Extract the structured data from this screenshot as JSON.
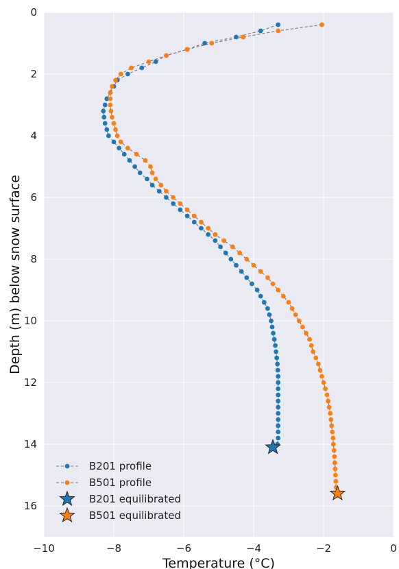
{
  "chart_data": {
    "type": "line",
    "title": "",
    "xlabel": "Temperature (°C)",
    "ylabel": "Depth (m) below snow surface",
    "xlim": [
      -10,
      0
    ],
    "ylim": [
      17,
      0
    ],
    "y_inverted": true,
    "xticks": [
      -10,
      -8,
      -6,
      -4,
      -2,
      0
    ],
    "xtick_labels": [
      "−10",
      "−8",
      "−6",
      "−4",
      "−2",
      "0"
    ],
    "yticks": [
      0,
      2,
      4,
      6,
      8,
      10,
      12,
      14,
      16
    ],
    "ytick_labels": [
      "0",
      "2",
      "4",
      "6",
      "8",
      "10",
      "12",
      "14",
      "16"
    ],
    "grid": true,
    "legend_position": "lower-left",
    "series": [
      {
        "name": "B201 profile",
        "color": "#1f77b4",
        "marker": "circle",
        "line": "dashed-gray",
        "points": [
          {
            "x": -3.3,
            "y": 0.4
          },
          {
            "x": -3.8,
            "y": 0.6
          },
          {
            "x": -4.5,
            "y": 0.8
          },
          {
            "x": -5.4,
            "y": 1.0
          },
          {
            "x": -5.9,
            "y": 1.2
          },
          {
            "x": -6.5,
            "y": 1.4
          },
          {
            "x": -6.8,
            "y": 1.6
          },
          {
            "x": -7.2,
            "y": 1.8
          },
          {
            "x": -7.6,
            "y": 2.0
          },
          {
            "x": -7.9,
            "y": 2.2
          },
          {
            "x": -8.0,
            "y": 2.4
          },
          {
            "x": -8.1,
            "y": 2.6
          },
          {
            "x": -8.2,
            "y": 2.8
          },
          {
            "x": -8.25,
            "y": 3.0
          },
          {
            "x": -8.3,
            "y": 3.2
          },
          {
            "x": -8.28,
            "y": 3.4
          },
          {
            "x": -8.25,
            "y": 3.6
          },
          {
            "x": -8.2,
            "y": 3.8
          },
          {
            "x": -8.15,
            "y": 4.0
          },
          {
            "x": -8.0,
            "y": 4.2
          },
          {
            "x": -7.85,
            "y": 4.4
          },
          {
            "x": -7.7,
            "y": 4.6
          },
          {
            "x": -7.55,
            "y": 4.8
          },
          {
            "x": -7.4,
            "y": 5.0
          },
          {
            "x": -7.25,
            "y": 5.2
          },
          {
            "x": -7.05,
            "y": 5.4
          },
          {
            "x": -6.9,
            "y": 5.6
          },
          {
            "x": -6.7,
            "y": 5.8
          },
          {
            "x": -6.5,
            "y": 6.0
          },
          {
            "x": -6.3,
            "y": 6.2
          },
          {
            "x": -6.1,
            "y": 6.4
          },
          {
            "x": -5.9,
            "y": 6.6
          },
          {
            "x": -5.7,
            "y": 6.8
          },
          {
            "x": -5.5,
            "y": 7.0
          },
          {
            "x": -5.3,
            "y": 7.2
          },
          {
            "x": -5.1,
            "y": 7.4
          },
          {
            "x": -4.95,
            "y": 7.6
          },
          {
            "x": -4.8,
            "y": 7.8
          },
          {
            "x": -4.65,
            "y": 8.0
          },
          {
            "x": -4.5,
            "y": 8.2
          },
          {
            "x": -4.35,
            "y": 8.4
          },
          {
            "x": -4.2,
            "y": 8.6
          },
          {
            "x": -4.05,
            "y": 8.8
          },
          {
            "x": -3.9,
            "y": 9.0
          },
          {
            "x": -3.8,
            "y": 9.2
          },
          {
            "x": -3.7,
            "y": 9.4
          },
          {
            "x": -3.6,
            "y": 9.6
          },
          {
            "x": -3.55,
            "y": 9.8
          },
          {
            "x": -3.5,
            "y": 10.0
          },
          {
            "x": -3.47,
            "y": 10.2
          },
          {
            "x": -3.44,
            "y": 10.4
          },
          {
            "x": -3.41,
            "y": 10.6
          },
          {
            "x": -3.38,
            "y": 10.8
          },
          {
            "x": -3.36,
            "y": 11.0
          },
          {
            "x": -3.34,
            "y": 11.2
          },
          {
            "x": -3.32,
            "y": 11.4
          },
          {
            "x": -3.31,
            "y": 11.6
          },
          {
            "x": -3.3,
            "y": 11.8
          },
          {
            "x": -3.3,
            "y": 12.0
          },
          {
            "x": -3.3,
            "y": 12.2
          },
          {
            "x": -3.3,
            "y": 12.4
          },
          {
            "x": -3.3,
            "y": 12.6
          },
          {
            "x": -3.3,
            "y": 12.8
          },
          {
            "x": -3.3,
            "y": 13.0
          },
          {
            "x": -3.3,
            "y": 13.2
          },
          {
            "x": -3.3,
            "y": 13.4
          },
          {
            "x": -3.3,
            "y": 13.6
          },
          {
            "x": -3.3,
            "y": 13.8
          },
          {
            "x": -3.32,
            "y": 14.0
          }
        ]
      },
      {
        "name": "B501 profile",
        "color": "#ff7f0e",
        "marker": "circle",
        "line": "dashed-gray",
        "points": [
          {
            "x": -2.05,
            "y": 0.4
          },
          {
            "x": -3.3,
            "y": 0.6
          },
          {
            "x": -4.3,
            "y": 0.8
          },
          {
            "x": -5.2,
            "y": 1.0
          },
          {
            "x": -5.9,
            "y": 1.2
          },
          {
            "x": -6.5,
            "y": 1.4
          },
          {
            "x": -7.0,
            "y": 1.6
          },
          {
            "x": -7.5,
            "y": 1.8
          },
          {
            "x": -7.8,
            "y": 2.0
          },
          {
            "x": -7.95,
            "y": 2.2
          },
          {
            "x": -8.05,
            "y": 2.4
          },
          {
            "x": -8.1,
            "y": 2.6
          },
          {
            "x": -8.1,
            "y": 2.8
          },
          {
            "x": -8.1,
            "y": 3.0
          },
          {
            "x": -8.08,
            "y": 3.2
          },
          {
            "x": -8.05,
            "y": 3.4
          },
          {
            "x": -8.0,
            "y": 3.6
          },
          {
            "x": -7.95,
            "y": 3.8
          },
          {
            "x": -7.9,
            "y": 4.0
          },
          {
            "x": -7.8,
            "y": 4.2
          },
          {
            "x": -7.6,
            "y": 4.4
          },
          {
            "x": -7.35,
            "y": 4.6
          },
          {
            "x": -7.1,
            "y": 4.8
          },
          {
            "x": -6.95,
            "y": 5.0
          },
          {
            "x": -6.9,
            "y": 5.2
          },
          {
            "x": -6.8,
            "y": 5.4
          },
          {
            "x": -6.65,
            "y": 5.6
          },
          {
            "x": -6.5,
            "y": 5.8
          },
          {
            "x": -6.3,
            "y": 6.0
          },
          {
            "x": -6.1,
            "y": 6.2
          },
          {
            "x": -5.9,
            "y": 6.4
          },
          {
            "x": -5.7,
            "y": 6.6
          },
          {
            "x": -5.5,
            "y": 6.8
          },
          {
            "x": -5.3,
            "y": 7.0
          },
          {
            "x": -5.1,
            "y": 7.2
          },
          {
            "x": -4.85,
            "y": 7.4
          },
          {
            "x": -4.6,
            "y": 7.6
          },
          {
            "x": -4.4,
            "y": 7.8
          },
          {
            "x": -4.2,
            "y": 8.0
          },
          {
            "x": -4.0,
            "y": 8.2
          },
          {
            "x": -3.8,
            "y": 8.4
          },
          {
            "x": -3.6,
            "y": 8.6
          },
          {
            "x": -3.45,
            "y": 8.8
          },
          {
            "x": -3.3,
            "y": 9.0
          },
          {
            "x": -3.15,
            "y": 9.2
          },
          {
            "x": -3.0,
            "y": 9.4
          },
          {
            "x": -2.9,
            "y": 9.6
          },
          {
            "x": -2.8,
            "y": 9.8
          },
          {
            "x": -2.7,
            "y": 10.0
          },
          {
            "x": -2.6,
            "y": 10.2
          },
          {
            "x": -2.5,
            "y": 10.4
          },
          {
            "x": -2.4,
            "y": 10.6
          },
          {
            "x": -2.35,
            "y": 10.8
          },
          {
            "x": -2.3,
            "y": 11.0
          },
          {
            "x": -2.22,
            "y": 11.2
          },
          {
            "x": -2.15,
            "y": 11.4
          },
          {
            "x": -2.1,
            "y": 11.6
          },
          {
            "x": -2.05,
            "y": 11.8
          },
          {
            "x": -2.0,
            "y": 12.0
          },
          {
            "x": -1.95,
            "y": 12.2
          },
          {
            "x": -1.9,
            "y": 12.4
          },
          {
            "x": -1.87,
            "y": 12.6
          },
          {
            "x": -1.84,
            "y": 12.8
          },
          {
            "x": -1.81,
            "y": 13.0
          },
          {
            "x": -1.79,
            "y": 13.2
          },
          {
            "x": -1.77,
            "y": 13.4
          },
          {
            "x": -1.75,
            "y": 13.6
          },
          {
            "x": -1.73,
            "y": 13.8
          },
          {
            "x": -1.72,
            "y": 14.0
          },
          {
            "x": -1.7,
            "y": 14.2
          },
          {
            "x": -1.69,
            "y": 14.4
          },
          {
            "x": -1.68,
            "y": 14.6
          },
          {
            "x": -1.67,
            "y": 14.8
          },
          {
            "x": -1.66,
            "y": 15.0
          },
          {
            "x": -1.65,
            "y": 15.2
          },
          {
            "x": -1.64,
            "y": 15.4
          }
        ]
      },
      {
        "name": "B201 equilibrated",
        "color": "#1f77b4",
        "marker": "star",
        "points": [
          {
            "x": -3.45,
            "y": 14.1
          }
        ]
      },
      {
        "name": "B501 equilibrated",
        "color": "#ff7f0e",
        "marker": "star",
        "points": [
          {
            "x": -1.6,
            "y": 15.6
          }
        ]
      }
    ],
    "colors": {
      "plot_background": "#e9eaf2",
      "grid": "#ffffff",
      "connector_line": "#777777",
      "star_edge": "#222222"
    }
  }
}
